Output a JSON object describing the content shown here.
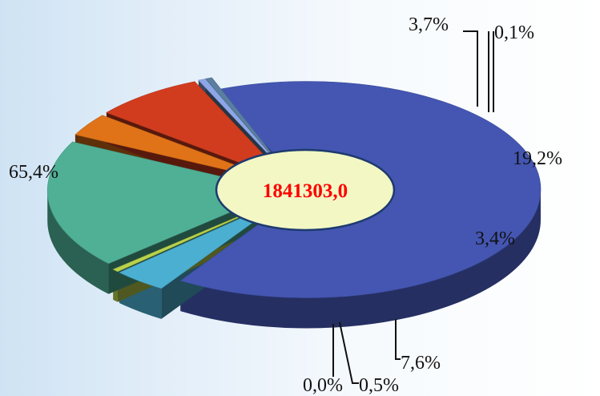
{
  "chart_data": {
    "type": "pie",
    "style": "3d-exploded",
    "center_label": "1841303,0",
    "center_label_color": "#ff0000",
    "slices": [
      {
        "value": 65.4,
        "label": "65,4%",
        "color": "#4456b2"
      },
      {
        "value": 3.7,
        "label": "3,7%",
        "color": "#4bafd2"
      },
      {
        "value": 0.1,
        "label": "0,1%",
        "color": "#b9d24b"
      },
      {
        "value": 19.2,
        "label": "19,2%",
        "color": "#4fb095"
      },
      {
        "value": 3.4,
        "label": "3,4%",
        "color": "#e07318"
      },
      {
        "value": 7.6,
        "label": "7,6%",
        "color": "#d23c1e"
      },
      {
        "value": 0.5,
        "label": "0,5%",
        "color": "#8da6e8"
      },
      {
        "value": 0.0,
        "label": "0,0%",
        "color": "#5a7fa0"
      }
    ]
  }
}
